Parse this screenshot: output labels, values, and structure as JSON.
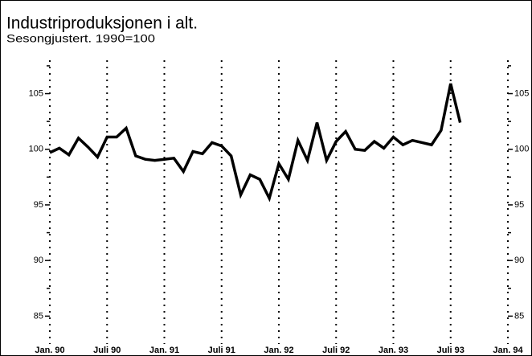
{
  "chart_data": {
    "type": "line",
    "title": "Industriproduksjonen i alt.",
    "subtitle": "Sesongjustert. 1990=100",
    "x": [
      1990,
      1990.0833,
      1990.1667,
      1990.25,
      1990.3333,
      1990.4167,
      1990.5,
      1990.5833,
      1990.6667,
      1990.75,
      1990.8333,
      1990.9167,
      1991,
      1991.0833,
      1991.1667,
      1991.25,
      1991.3333,
      1991.4167,
      1991.5,
      1991.5833,
      1991.6667,
      1991.75,
      1991.8333,
      1991.9167,
      1992,
      1992.0833,
      1992.1667,
      1992.25,
      1992.3333,
      1992.4167,
      1992.5,
      1992.5833,
      1992.6667,
      1992.75,
      1992.8333,
      1992.9167,
      1993,
      1993.0833,
      1993.1667,
      1993.25,
      1993.3333,
      1993.4167,
      1993.5,
      1993.5833
    ],
    "values": [
      99.7,
      100.1,
      99.5,
      101.0,
      100.2,
      99.3,
      101.1,
      101.1,
      101.9,
      99.4,
      99.1,
      99.0,
      99.1,
      99.2,
      98.0,
      99.8,
      99.6,
      100.6,
      100.3,
      99.4,
      95.9,
      97.7,
      97.3,
      95.6,
      98.7,
      97.3,
      100.8,
      99.0,
      102.4,
      99.0,
      100.7,
      101.6,
      100.0,
      99.9,
      100.7,
      100.1,
      101.1,
      100.4,
      100.8,
      100.6,
      100.4,
      101.7,
      105.9,
      102.4
    ],
    "color": "#000000",
    "xlim": [
      1990,
      1994
    ],
    "xticks": [
      {
        "value": 1990,
        "label": "Jan. 90"
      },
      {
        "value": 1990.5,
        "label": "Juli 90"
      },
      {
        "value": 1991,
        "label": "Jan. 91"
      },
      {
        "value": 1991.5,
        "label": "Juli 91"
      },
      {
        "value": 1992,
        "label": "Jan. 92"
      },
      {
        "value": 1992.5,
        "label": "Juli 92"
      },
      {
        "value": 1993,
        "label": "Jan. 93"
      },
      {
        "value": 1993.5,
        "label": "Juli 93"
      },
      {
        "value": 1994,
        "label": "Jan. 94"
      }
    ],
    "ylim": [
      82.5,
      108
    ],
    "yticks": [
      85,
      90,
      95,
      100,
      105
    ],
    "minor_yticks": [
      87.5,
      92.5,
      97.5,
      102.5,
      107.5
    ],
    "grid": true
  }
}
